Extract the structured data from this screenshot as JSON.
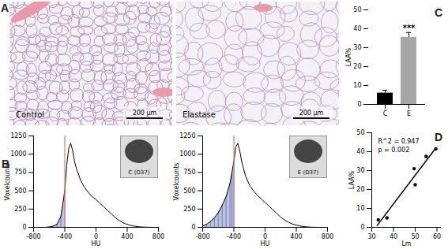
{
  "chart_data": [
    {
      "panel": "B",
      "type": "line",
      "title": "C (D37)",
      "xlabel": "HU",
      "ylabel": "Voxelcounts",
      "x": [
        -800,
        -750,
        -700,
        -650,
        -600,
        -550,
        -500,
        -450,
        -400,
        -375,
        -350,
        -325,
        -300,
        -275,
        -250,
        -200,
        -150,
        -100,
        -50,
        0,
        50,
        100,
        150,
        200,
        250,
        300,
        350,
        400,
        450,
        500,
        550,
        600,
        650,
        700,
        750,
        800
      ],
      "values": [
        0,
        0,
        0,
        0,
        5,
        15,
        40,
        150,
        500,
        850,
        1080,
        1150,
        1050,
        900,
        800,
        650,
        550,
        480,
        420,
        380,
        330,
        280,
        230,
        180,
        130,
        90,
        60,
        40,
        25,
        15,
        8,
        4,
        2,
        1,
        0,
        0
      ],
      "color": "#000000",
      "threshold": -400,
      "xlim": [
        -800,
        800
      ],
      "xticks": [
        -800,
        -400,
        0,
        400,
        800
      ],
      "ylim": [
        0,
        1250
      ],
      "yticks": [
        0,
        250,
        500,
        750,
        1000,
        1250
      ]
    },
    {
      "type": "line",
      "title": "E (D37)",
      "xlabel": "HU",
      "ylabel": "Voxelcounts",
      "x": [
        -800,
        -750,
        -700,
        -650,
        -600,
        -550,
        -500,
        -450,
        -425,
        -400,
        -375,
        -350,
        -325,
        -300,
        -250,
        -200,
        -150,
        -100,
        -50,
        0,
        50,
        100,
        150,
        200,
        250,
        300,
        350,
        400,
        450,
        500,
        550,
        600,
        650,
        700,
        750,
        800
      ],
      "values": [
        20,
        40,
        80,
        130,
        200,
        300,
        420,
        600,
        750,
        900,
        1100,
        1150,
        1050,
        900,
        700,
        580,
        500,
        440,
        390,
        340,
        290,
        240,
        190,
        140,
        100,
        70,
        45,
        30,
        18,
        10,
        5,
        2,
        1,
        0,
        0,
        0
      ],
      "color": "#000000",
      "threshold": -400,
      "xlim": [
        -800,
        800
      ],
      "xticks": [
        -800,
        -400,
        0,
        400,
        800
      ],
      "ylim": [
        0,
        1250
      ],
      "yticks": [
        0,
        250,
        500,
        750,
        1000,
        1250
      ]
    },
    {
      "panel": "C",
      "type": "bar",
      "ylabel": "LAA%",
      "categories": [
        "C",
        "E"
      ],
      "values": [
        6,
        35.5
      ],
      "errors": [
        1.5,
        2.5
      ],
      "colors": [
        "#000000",
        "#a6a6a6"
      ],
      "ylim": [
        0,
        50
      ],
      "yticks": [
        0,
        10,
        20,
        30,
        40,
        50
      ],
      "annotations": [
        {
          "text": "***",
          "category": "E"
        }
      ]
    },
    {
      "panel": "D",
      "type": "scatter",
      "xlabel": "Lm",
      "ylabel": "LAA%",
      "series": [
        {
          "type": "scatter",
          "x": [
            33,
            37,
            49.5,
            50,
            55,
            59.5
          ],
          "values": [
            4,
            5,
            31,
            22.5,
            37.5,
            41.5
          ],
          "color": "#000000"
        },
        {
          "type": "line",
          "x": [
            32.5,
            59.5
          ],
          "values": [
            1,
            42
          ],
          "color": "#000000"
        }
      ],
      "xlim": [
        30,
        62
      ],
      "xticks": [
        30,
        40,
        50,
        60
      ],
      "ylim": [
        0,
        50
      ],
      "yticks": [
        0,
        10,
        20,
        30,
        40,
        50
      ],
      "annotations": [
        "R^2 = 0.947",
        "p = 0.002"
      ]
    }
  ],
  "images": {
    "panel": "A",
    "items": [
      {
        "label": "Control",
        "scale_bar": "200 μm"
      },
      {
        "label": "Elastase",
        "scale_bar": "200 μm"
      }
    ]
  }
}
